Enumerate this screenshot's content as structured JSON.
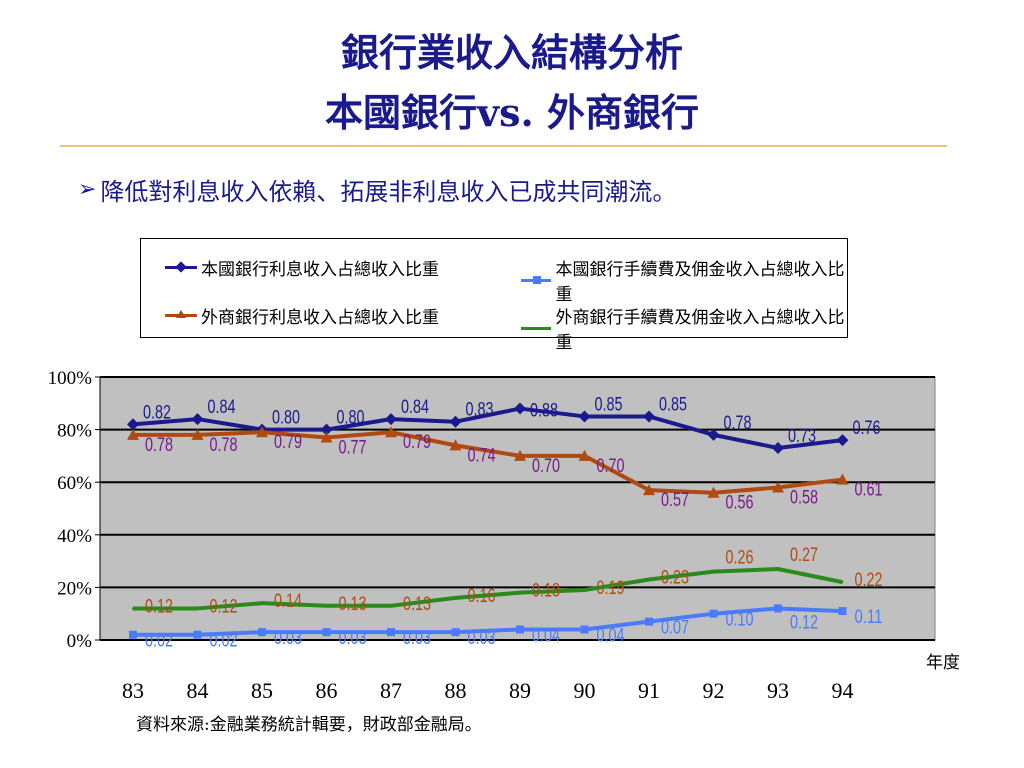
{
  "title_line1": "銀行業收入結構分析",
  "title_line2": "本國銀行vs. 外商銀行",
  "bullet_text": "降低對利息收入依賴、拓展非利息收入已成共同潮流。",
  "source_note": "資料來源:金融業務統計輯要，財政部金融局。",
  "colors": {
    "domestic_interest": "#1a1a8c",
    "domestic_fee": "#4a7bff",
    "foreign_interest": "#b04a10",
    "foreign_fee": "#2a8a1a",
    "plot_bg": "#c0c0c0",
    "domestic_interest_label": "#1a1a8c",
    "foreign_interest_label": "#7a1a8a",
    "domestic_fee_label": "#4a7bff",
    "foreign_fee_label": "#b04a10"
  },
  "chart_data": {
    "type": "line",
    "xlabel": "年度",
    "ylabel": "",
    "ylim": [
      0,
      1
    ],
    "yticks": [
      "0%",
      "20%",
      "40%",
      "60%",
      "80%",
      "100%"
    ],
    "grid": true,
    "legend_position": "top",
    "categories": [
      "83",
      "84",
      "85",
      "86",
      "87",
      "88",
      "89",
      "90",
      "91",
      "92",
      "93",
      "94"
    ],
    "series": [
      {
        "name": "本國銀行利息收入占總收入比重",
        "key": "domestic_interest",
        "marker": "diamond",
        "values": [
          0.82,
          0.84,
          0.8,
          0.8,
          0.84,
          0.83,
          0.88,
          0.85,
          0.85,
          0.78,
          0.73,
          0.76
        ],
        "labels": [
          "0.82",
          "0.84",
          "0.80",
          "0.80",
          "0.84",
          "0.83",
          "0.88",
          "0.85",
          "0.85",
          "0.78",
          "0.73",
          "0.76"
        ]
      },
      {
        "name": "本國銀行手續費及佣金收入占總收入比重",
        "key": "domestic_fee",
        "marker": "square",
        "values": [
          0.02,
          0.02,
          0.03,
          0.03,
          0.03,
          0.03,
          0.04,
          0.04,
          0.07,
          0.1,
          0.12,
          0.11
        ],
        "labels": [
          "0.02",
          "0.02",
          "0.03",
          "0.03",
          "0.03",
          "0.03",
          "0.04",
          "0.04",
          "0.07",
          "0.10",
          "0.12",
          "0.11"
        ]
      },
      {
        "name": "外商銀行利息收入占總收入比重",
        "key": "foreign_interest",
        "marker": "triangle",
        "values": [
          0.78,
          0.78,
          0.79,
          0.77,
          0.79,
          0.74,
          0.7,
          0.7,
          0.57,
          0.56,
          0.58,
          0.61
        ],
        "labels": [
          "0.78",
          "0.78",
          "0.79",
          "0.77",
          "0.79",
          "0.74",
          "0.70",
          "0.70",
          "0.57",
          "0.56",
          "0.58",
          "0.61"
        ]
      },
      {
        "name": "外商銀行手續費及佣金收入占總收入比重",
        "key": "foreign_fee",
        "marker": "none",
        "values": [
          0.12,
          0.12,
          0.14,
          0.13,
          0.13,
          0.16,
          0.18,
          0.19,
          0.23,
          0.26,
          0.27,
          0.22
        ],
        "labels": [
          "0.12",
          "0.12",
          "0.14",
          "0.13",
          "0.13",
          "0.16",
          "0.18",
          "0.19",
          "0.23",
          "0.26",
          "0.27",
          "0.22"
        ]
      }
    ]
  }
}
